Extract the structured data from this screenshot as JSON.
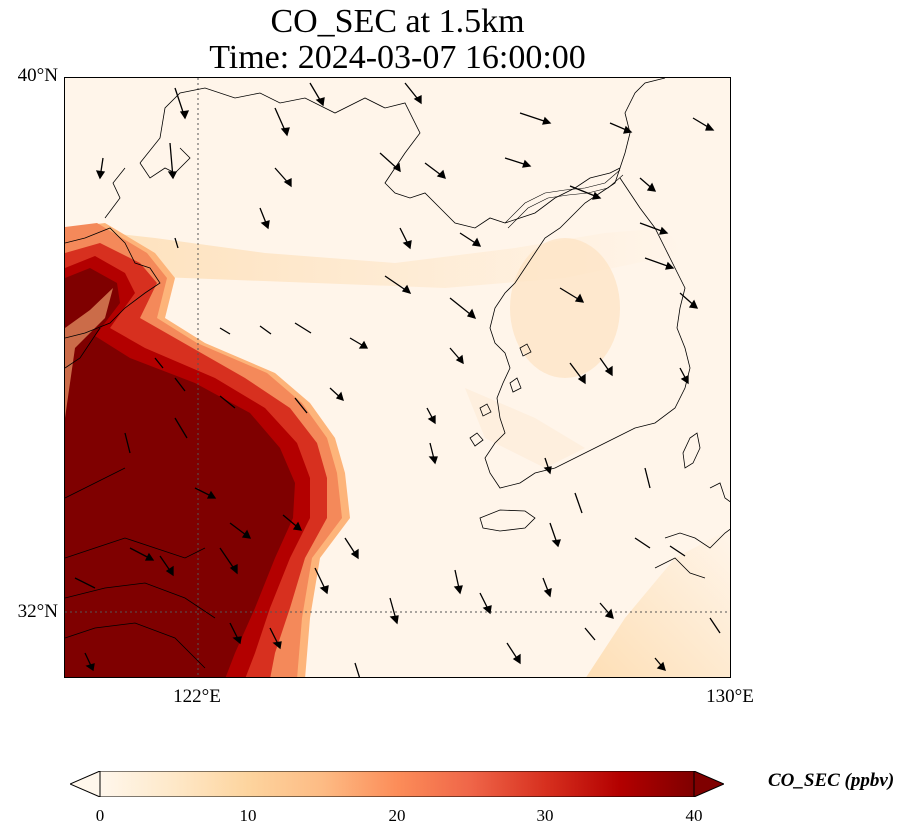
{
  "title": {
    "line1": "CO_SEC at 1.5km",
    "line2": "Time: 2024-03-07 16:00:00"
  },
  "axes": {
    "lat_labels": [
      "40°N",
      "32°N"
    ],
    "lon_labels": [
      "122°E",
      "130°E"
    ]
  },
  "colorbar": {
    "label": "CO_SEC (ppbv)",
    "ticks": [
      "0",
      "10",
      "20",
      "30",
      "40"
    ],
    "min": 0,
    "max": 40,
    "colormap": "OrRd",
    "extend": "both"
  },
  "map": {
    "extent": {
      "lon_min": 120,
      "lon_max": 130,
      "lat_min": 31,
      "lat_max": 40
    },
    "gridlines": "dotted",
    "features": [
      "coastline",
      "china-mainland",
      "korean-peninsula",
      "jeju-island",
      "japan-kyushu"
    ],
    "colors": {
      "low": "#fff5eb",
      "mid": "#fdd49e",
      "high": "#d7301f",
      "max": "#7f0000"
    }
  }
}
